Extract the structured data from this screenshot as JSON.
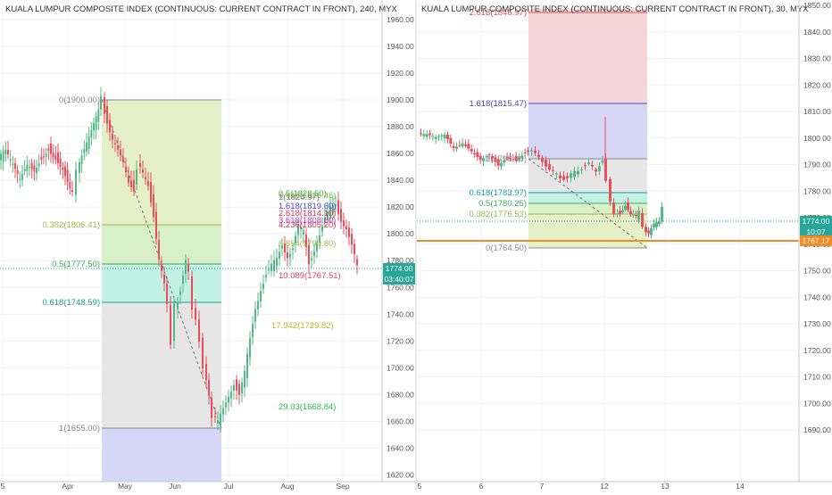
{
  "left_chart": {
    "title": "KUALA LUMPUR COMPOSITE INDEX (CONTINUOUS: CURRENT CONTRACT IN FRONT), 240, MYX",
    "price_badge": "1774.00",
    "countdown_badge": "03:40:07",
    "y_ticks": [
      "1960.00",
      "1940.00",
      "1920.00",
      "1900.00",
      "1880.00",
      "1860.00",
      "1840.00",
      "1820.00",
      "1800.00",
      "1780.00",
      "1760.00",
      "1740.00",
      "1720.00",
      "1700.00",
      "1680.00",
      "1660.00",
      "1640.00",
      "1620.00"
    ],
    "x_ticks": [
      "5",
      "Apr",
      "May",
      "Jun",
      "Jul",
      "Aug",
      "Sep"
    ],
    "fib_labels": [
      "0(1900.00)",
      "0.382(1806.41)",
      "0.5(1777.50)",
      "0.618(1748.59)",
      "1(1655.00)"
    ],
    "ext_labels": [
      "0.5(1828.50)",
      "0.618(1825.46)",
      "1(1824.97)",
      "1.618(1819.60)",
      "2.618(1814.10)",
      "3.618(1808.60)",
      "4.236(1805.20)",
      "6.854(1790.80)",
      "10.089(1767.51)",
      "17.942(1729.82)",
      "29.03(1668.84)"
    ]
  },
  "right_chart": {
    "title": "KUALA LUMPUR COMPOSITE INDEX (CONTINUOUS: CURRENT CONTRACT IN FRONT), 30, MYX",
    "price_badge": "1774.00",
    "countdown_badge": "10:07",
    "level_badge": "1767.17",
    "y_ticks": [
      "1850.00",
      "1840.00",
      "1830.00",
      "1820.00",
      "1810.00",
      "1800.00",
      "1790.00",
      "1780.00",
      "1770.00",
      "1760.00",
      "1750.00",
      "1740.00",
      "1730.00",
      "1720.00",
      "1710.00",
      "1700.00",
      "1690.00"
    ],
    "x_ticks": [
      "5",
      "6",
      "7",
      "12",
      "13",
      "14"
    ],
    "fib_labels": [
      "2.618(1846.97)",
      "1.618(1815.47)",
      "1(1796.00)",
      "0.618(1783.97)",
      "0.5(1780.25)",
      "0.382(1776.53)",
      "0(1764.50)"
    ]
  },
  "colors": {
    "up": "#53b987",
    "down": "#eb4d5c",
    "green_zone": "#e6f0c8",
    "teal_zone": "#c3f2e4",
    "grey_zone": "#e6e6e6",
    "blue_zone": "#d6d6f6",
    "red_zone": "#f5d5d8",
    "orange_line": "#f08c28"
  },
  "chart_data": [
    {
      "type": "candlestick",
      "title": "KUALA LUMPUR COMPOSITE INDEX (CONTINUOUS: CURRENT CONTRACT IN FRONT), 240, MYX",
      "ylim": [
        1617,
        1970
      ],
      "last_price": 1774.0,
      "fibonacci_retracement": {
        "high": 1900.0,
        "low": 1655.0,
        "levels": [
          [
            0,
            1900.0
          ],
          [
            0.382,
            1806.41
          ],
          [
            0.5,
            1777.5
          ],
          [
            0.618,
            1748.59
          ],
          [
            1,
            1655.0
          ]
        ]
      },
      "trend_fib_extension": [
        [
          0.5,
          1828.5
        ],
        [
          0.618,
          1825.46
        ],
        [
          1,
          1824.97
        ],
        [
          1.618,
          1819.6
        ],
        [
          2.618,
          1814.1
        ],
        [
          3.618,
          1808.6
        ],
        [
          4.236,
          1805.2
        ],
        [
          6.854,
          1790.8
        ],
        [
          10.089,
          1767.51
        ],
        [
          17.942,
          1729.82
        ],
        [
          29.03,
          1668.84
        ]
      ]
    },
    {
      "type": "candlestick",
      "title": "KUALA LUMPUR COMPOSITE INDEX (CONTINUOUS: CURRENT CONTRACT IN FRONT), 30, MYX",
      "ylim": [
        1686,
        1852
      ],
      "last_price": 1774.0,
      "horizontal_level": 1767.17,
      "fibonacci_retracement": {
        "high": 1796.0,
        "low": 1764.5,
        "levels": [
          [
            2.618,
            1846.97
          ],
          [
            1.618,
            1815.47
          ],
          [
            1,
            1796.0
          ],
          [
            0.618,
            1783.97
          ],
          [
            0.5,
            1780.25
          ],
          [
            0.382,
            1776.53
          ],
          [
            0,
            1764.5
          ]
        ]
      }
    }
  ]
}
